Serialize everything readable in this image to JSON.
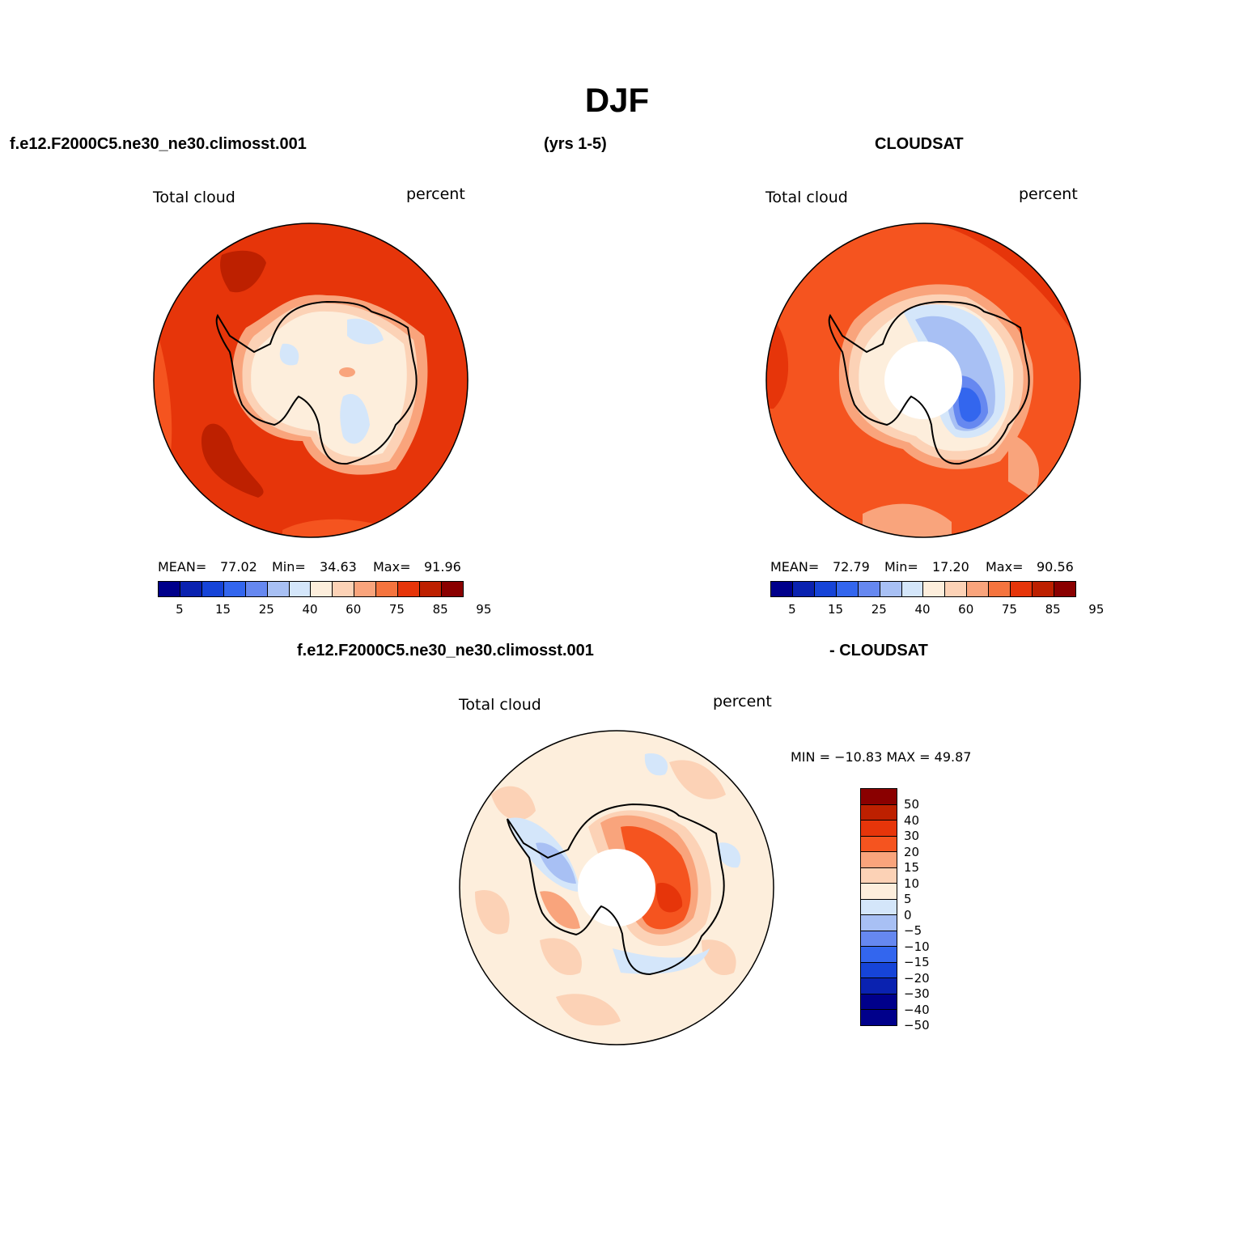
{
  "title": "DJF",
  "top_left_header": "f.e12.F2000C5.ne30_ne30.climosst.001",
  "top_mid_header": "(yrs 1-5)",
  "top_right_header": "CLOUDSAT",
  "bottom_header_left": "f.e12.F2000C5.ne30_ne30.climosst.001",
  "bottom_header_right": "- CLOUDSAT",
  "panels": {
    "model": {
      "var_label": "Total cloud",
      "units_label": "percent",
      "mean_label": "MEAN=",
      "mean": "77.02",
      "min_label": "Min=",
      "min": "34.63",
      "max_label": "Max=",
      "max": "91.96"
    },
    "obs": {
      "var_label": "Total cloud",
      "units_label": "percent",
      "mean_label": "MEAN=",
      "mean": "72.79",
      "min_label": "Min=",
      "min": "17.20",
      "max_label": "Max=",
      "max": "90.56"
    },
    "diff": {
      "var_label": "Total cloud",
      "units_label": "percent",
      "minmax": "MIN = −10.83  MAX =   49.87"
    }
  },
  "abs_colorbar": {
    "colors": [
      "#00008b",
      "#0a22b0",
      "#1644d8",
      "#3366ee",
      "#6688f0",
      "#a8c0f4",
      "#d4e6fa",
      "#fdeedc",
      "#fcd2b6",
      "#f9a47c",
      "#f5743e",
      "#e6350a",
      "#bd2000",
      "#8a0000"
    ],
    "tick_labels": [
      "5",
      "15",
      "25",
      "40",
      "60",
      "75",
      "85",
      "95"
    ]
  },
  "diff_colorbar": {
    "colors": [
      "#8a0000",
      "#bd2000",
      "#e6350a",
      "#f5541f",
      "#f9a47c",
      "#fcd2b6",
      "#fdeedc",
      "#d4e6fa",
      "#a8c0f4",
      "#6688f0",
      "#3366ee",
      "#1644d8",
      "#0a22b0",
      "#00008b",
      "#00008b"
    ],
    "labels": [
      "50",
      "40",
      "30",
      "20",
      "15",
      "10",
      "5",
      "0",
      "−5",
      "−10",
      "−15",
      "−20",
      "−30",
      "−40",
      "−50"
    ]
  }
}
